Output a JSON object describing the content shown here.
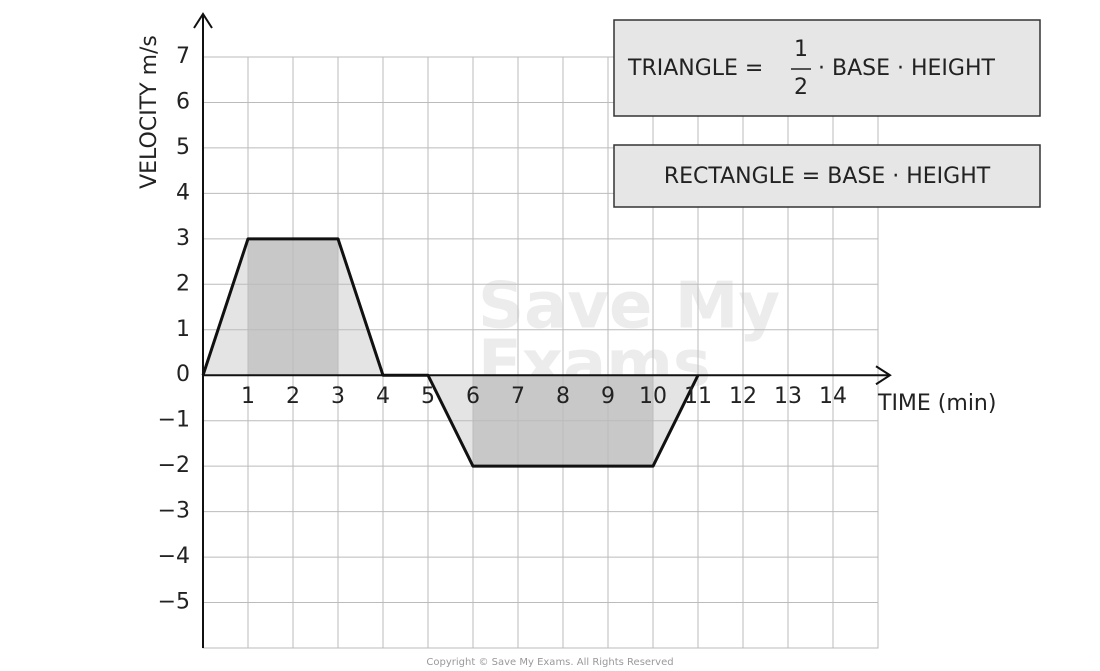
{
  "chart_data": {
    "type": "line",
    "y_label": "VELOCITY m/s",
    "x_label": "TIME (min)",
    "x": [
      0,
      1,
      3,
      4,
      5,
      6,
      10,
      11
    ],
    "series": [
      {
        "values": [
          0,
          3,
          3,
          0,
          0,
          -2,
          -2,
          0
        ],
        "color": "#111111"
      }
    ],
    "xlim": [
      0,
      15
    ],
    "ylim": [
      -6,
      7
    ],
    "xticks": [
      1,
      2,
      3,
      4,
      5,
      6,
      7,
      8,
      9,
      10,
      11,
      12,
      13,
      14
    ],
    "yticks": [
      {
        "value": -5,
        "label": "−5"
      },
      {
        "value": -4,
        "label": "−4"
      },
      {
        "value": -3,
        "label": "−3"
      },
      {
        "value": -2,
        "label": "−2"
      },
      {
        "value": -1,
        "label": "−1"
      },
      0,
      1,
      2,
      3,
      4,
      5,
      6,
      7
    ],
    "grid": true,
    "area_colors": {
      "triangle": "#e4e4e4",
      "rectangle": "#c8c8c8"
    },
    "formulas": {
      "triangle": {
        "lhs": "TRIANGLE =",
        "numerator": "1",
        "denominator": "2",
        "rhs": "· BASE · HEIGHT"
      },
      "rectangle": "RECTANGLE = BASE · HEIGHT"
    },
    "watermark": [
      "Save My",
      "Exams"
    ],
    "copyright": "Copyright © Save My Exams. All Rights Reserved"
  }
}
